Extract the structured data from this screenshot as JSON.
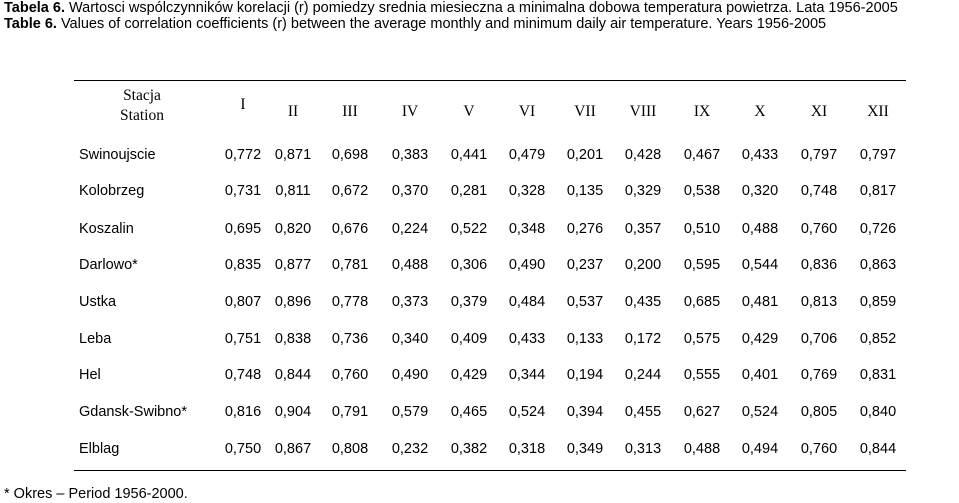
{
  "caption": {
    "pl_label": "Tabela 6.",
    "pl_text": " Wartosci wspólczynników korelacji (r) pomiedzy srednia miesieczna a minimalna dobowa temperatura powietrza. Lata 1956-2005",
    "en_label": "Table 6.",
    "en_text": "  Values of correlation coefficients (r) between the average monthly and minimum daily air temperature. Years 1956-2005"
  },
  "table": {
    "station_header": [
      "Stacja",
      "Station"
    ],
    "months": [
      "I",
      "II",
      "III",
      "IV",
      "V",
      "VI",
      "VII",
      "VIII",
      "IX",
      "X",
      "XI",
      "XII"
    ],
    "rows": [
      {
        "name": "Swinoujscie",
        "values": [
          "0,772",
          "0,871",
          "0,698",
          "0,383",
          "0,441",
          "0,479",
          "0,201",
          "0,428",
          "0,467",
          "0,433",
          "0,797",
          "0,797"
        ]
      },
      {
        "name": "Kolobrzeg",
        "values": [
          "0,731",
          "0,811",
          "0,672",
          "0,370",
          "0,281",
          "0,328",
          "0,135",
          "0,329",
          "0,538",
          "0,320",
          "0,748",
          "0,817"
        ]
      },
      {
        "name": "Koszalin",
        "values": [
          "0,695",
          "0,820",
          "0,676",
          "0,224",
          "0,522",
          "0,348",
          "0,276",
          "0,357",
          "0,510",
          "0,488",
          "0,760",
          "0,726"
        ]
      },
      {
        "name": "Darlowo*",
        "values": [
          "0,835",
          "0,877",
          "0,781",
          "0,488",
          "0,306",
          "0,490",
          "0,237",
          "0,200",
          "0,595",
          "0,544",
          "0,836",
          "0,863"
        ]
      },
      {
        "name": "Ustka",
        "values": [
          "0,807",
          "0,896",
          "0,778",
          "0,373",
          "0,379",
          "0,484",
          "0,537",
          "0,435",
          "0,685",
          "0,481",
          "0,813",
          "0,859"
        ]
      },
      {
        "name": "Leba",
        "values": [
          "0,751",
          "0,838",
          "0,736",
          "0,340",
          "0,409",
          "0,433",
          "0,133",
          "0,172",
          "0,575",
          "0,429",
          "0,706",
          "0,852"
        ]
      },
      {
        "name": "Hel",
        "values": [
          "0,748",
          "0,844",
          "0,760",
          "0,490",
          "0,429",
          "0,344",
          "0,194",
          "0,244",
          "0,555",
          "0,401",
          "0,769",
          "0,831"
        ]
      },
      {
        "name": "Gdansk-Swibno*",
        "values": [
          "0,816",
          "0,904",
          "0,791",
          "0,579",
          "0,465",
          "0,524",
          "0,394",
          "0,455",
          "0,627",
          "0,524",
          "0,805",
          "0,840"
        ]
      },
      {
        "name": "Elblag",
        "values": [
          "0,750",
          "0,867",
          "0,808",
          "0,232",
          "0,382",
          "0,318",
          "0,349",
          "0,313",
          "0,488",
          "0,494",
          "0,760",
          "0,844"
        ]
      }
    ]
  },
  "footnote": "* Okres – Period 1956-2000."
}
